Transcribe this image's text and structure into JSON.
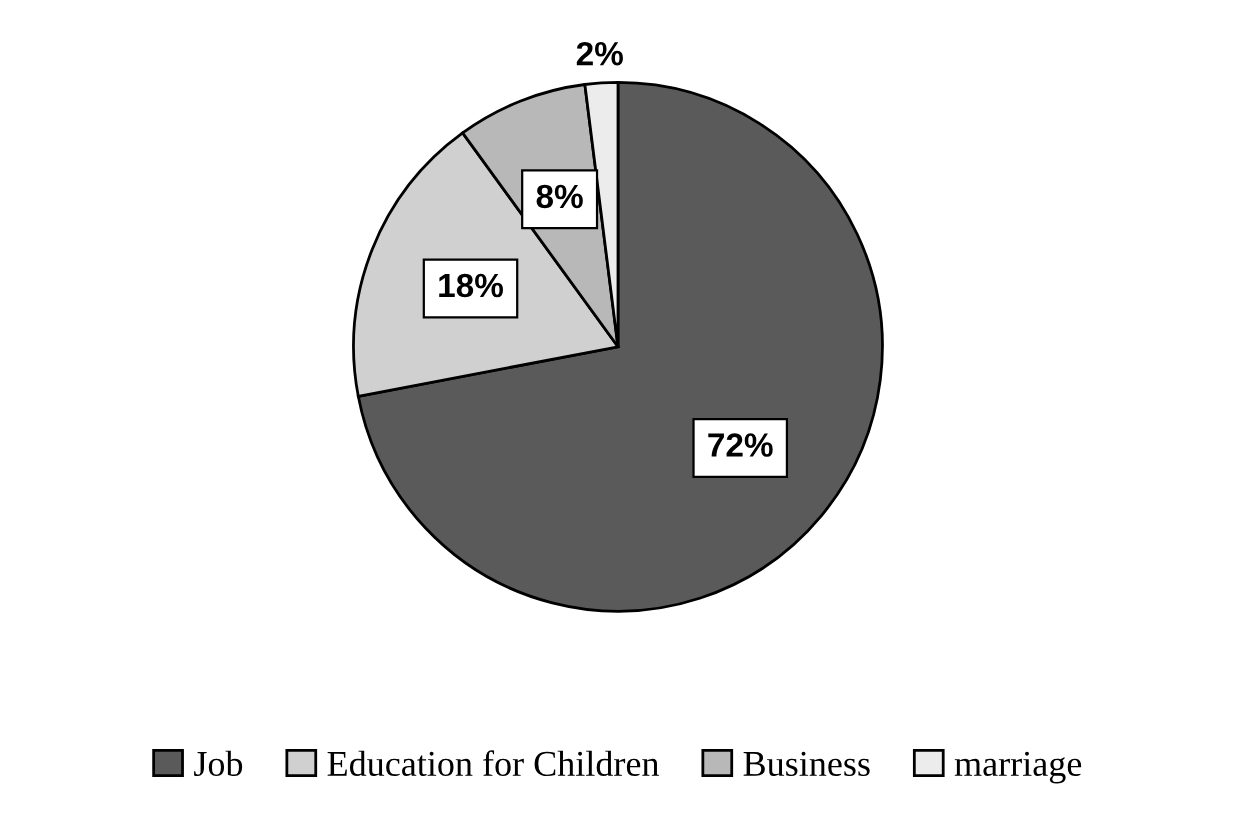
{
  "chart_data": {
    "type": "pie",
    "categories": [
      "Job",
      "Education for Children",
      "Business",
      "marriage"
    ],
    "values": [
      72,
      18,
      8,
      2
    ],
    "colors": [
      "#5a5a5a",
      "#d0d0d0",
      "#b8b8b8",
      "#ececec"
    ],
    "value_labels": [
      "72%",
      "18%",
      "8%",
      "2%"
    ],
    "legend": "bottom"
  }
}
